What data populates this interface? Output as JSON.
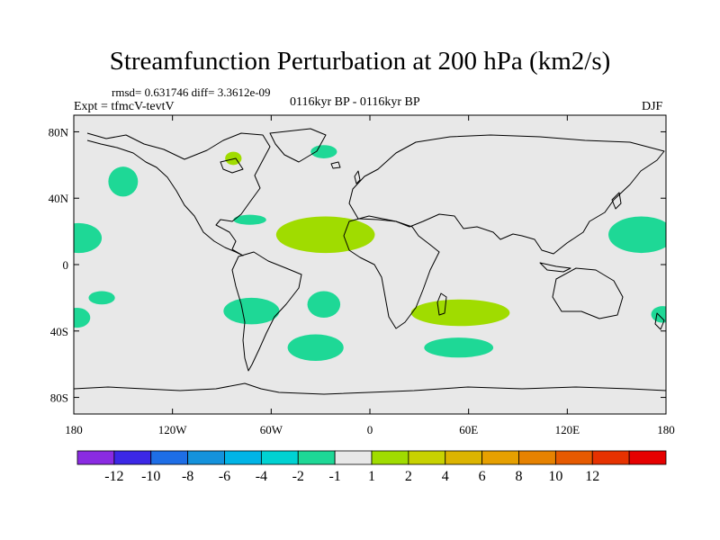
{
  "title": "Streamfunction Perturbation at 200 hPa (km2/s)",
  "stats_text": "rmsd= 0.631746 diff= 3.3612e-09",
  "experiment_text": "Expt = tfmcV-tevtV",
  "period_text": "0116kyr BP - 0116kyr BP",
  "season_text": "DJF",
  "map": {
    "projection": "cylindrical equidistant",
    "lon_range": [
      -180,
      180
    ],
    "lat_range": [
      -90,
      90
    ],
    "ocean_color": "#e8e8e8",
    "coastline_color": "#000000",
    "lon_ticks": [
      {
        "value": -180,
        "label": "180"
      },
      {
        "value": -120,
        "label": "120W"
      },
      {
        "value": -60,
        "label": "60W"
      },
      {
        "value": 0,
        "label": "0"
      },
      {
        "value": 60,
        "label": "60E"
      },
      {
        "value": 120,
        "label": "120E"
      },
      {
        "value": 180,
        "label": "180"
      }
    ],
    "lat_ticks": [
      {
        "value": 80,
        "label": "80N"
      },
      {
        "value": 40,
        "label": "40N"
      },
      {
        "value": 0,
        "label": "0"
      },
      {
        "value": -40,
        "label": "40S"
      },
      {
        "value": -80,
        "label": "80S"
      }
    ]
  },
  "anomaly_regions": [
    {
      "sign": "negative",
      "level": "-2 to -1",
      "color": "#1ed896",
      "center": [
        -150,
        50
      ],
      "radius": [
        9,
        9
      ]
    },
    {
      "sign": "negative",
      "level": "-2 to -1",
      "color": "#1ed896",
      "center": [
        -177,
        16
      ],
      "radius": [
        14,
        9
      ]
    },
    {
      "sign": "negative",
      "level": "-2 to -1",
      "color": "#1ed896",
      "center": [
        -163,
        -20
      ],
      "radius": [
        8,
        4
      ]
    },
    {
      "sign": "negative",
      "level": "-2 to -1",
      "color": "#1ed896",
      "center": [
        -178,
        -32
      ],
      "radius": [
        8,
        6
      ]
    },
    {
      "sign": "negative",
      "level": "-2 to -1",
      "color": "#1ed896",
      "center": [
        -73,
        27
      ],
      "radius": [
        10,
        3
      ]
    },
    {
      "sign": "negative",
      "level": "-2 to -1",
      "color": "#1ed896",
      "center": [
        -72,
        -28
      ],
      "radius": [
        17,
        8
      ]
    },
    {
      "sign": "negative",
      "level": "-2 to -1",
      "color": "#1ed896",
      "center": [
        -28,
        -24
      ],
      "radius": [
        10,
        8
      ]
    },
    {
      "sign": "negative",
      "level": "-2 to -1",
      "color": "#1ed896",
      "center": [
        -28,
        68
      ],
      "radius": [
        8,
        4
      ]
    },
    {
      "sign": "negative",
      "level": "-2 to -1",
      "color": "#1ed896",
      "center": [
        165,
        18
      ],
      "radius": [
        20,
        11
      ]
    },
    {
      "sign": "negative",
      "level": "-2 to -1",
      "color": "#1ed896",
      "center": [
        178,
        -30
      ],
      "radius": [
        7,
        5
      ]
    },
    {
      "sign": "negative",
      "level": "-2 to -1",
      "color": "#1ed896",
      "center": [
        54,
        -50
      ],
      "radius": [
        21,
        6
      ]
    },
    {
      "sign": "negative",
      "level": "-2 to -1",
      "color": "#1ed896",
      "center": [
        -33,
        -50
      ],
      "radius": [
        17,
        8
      ]
    },
    {
      "sign": "positive",
      "level": "1 to 2",
      "color": "#a0dc00",
      "center": [
        -27,
        18
      ],
      "radius": [
        30,
        11
      ]
    },
    {
      "sign": "positive",
      "level": "1 to 2",
      "color": "#a0dc00",
      "center": [
        55,
        -29
      ],
      "radius": [
        30,
        8
      ]
    },
    {
      "sign": "positive",
      "level": "1 to 2",
      "color": "#a0dc00",
      "center": [
        -83,
        64
      ],
      "radius": [
        5,
        4
      ]
    }
  ],
  "colorbar": {
    "colors": [
      "#8a2be2",
      "#3c28e6",
      "#1e6ee6",
      "#1492dc",
      "#00b4e6",
      "#00d2d2",
      "#1ed896",
      "#e8e8e8",
      "#a0dc00",
      "#c8d200",
      "#dcb400",
      "#e6a000",
      "#e68200",
      "#e65a00",
      "#e63200",
      "#e60000"
    ],
    "labels": [
      "-12",
      "-10",
      "-8",
      "-6",
      "-4",
      "-2",
      "-1",
      "1",
      "2",
      "4",
      "6",
      "8",
      "10",
      "12"
    ]
  }
}
